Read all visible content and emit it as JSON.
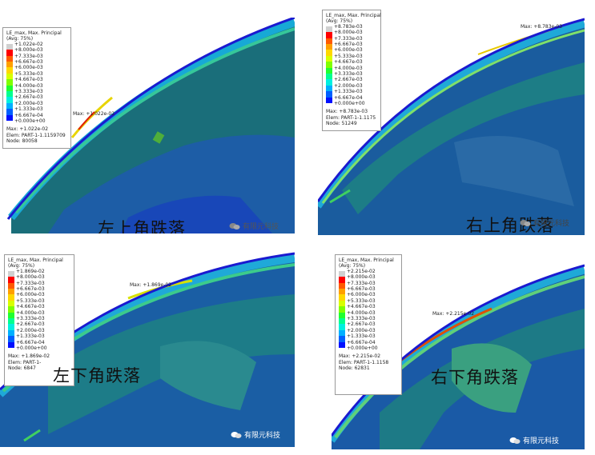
{
  "legend_colors": [
    "#d0d0d0",
    "#ff0000",
    "#ff5a00",
    "#ffa000",
    "#ffd800",
    "#d8ff00",
    "#80ff00",
    "#20ff30",
    "#00ff90",
    "#00f0e0",
    "#00b0ff",
    "#0060ff",
    "#0010ff"
  ],
  "panels": [
    {
      "title": "LE_max, Max. Principal",
      "avg": "(Avg: 75%)",
      "values": [
        "+1.022e-02",
        "+8.000e-03",
        "+7.333e-03",
        "+6.667e-03",
        "+6.000e-03",
        "+5.333e-03",
        "+4.667e-03",
        "+4.000e-03",
        "+3.333e-03",
        "+2.667e-03",
        "+2.000e-03",
        "+1.333e-03",
        "+6.667e-04",
        "+0.000e+00"
      ],
      "max_line": "Max: +1.022e-02",
      "elem_line": "Elem: PART-1-1.1159709",
      "node_line": "Node: 80058",
      "max_marker": "Max: +1.022e-02",
      "caption": "左上角跌落",
      "watermark": "有限元科技"
    },
    {
      "title": "LE_max, Max. Principal",
      "avg": "(Avg: 75%)",
      "values": [
        "+8.783e-03",
        "+8.000e-03",
        "+7.333e-03",
        "+6.667e-03",
        "+6.000e-03",
        "+5.333e-03",
        "+4.667e-03",
        "+4.000e-03",
        "+3.333e-03",
        "+2.667e-03",
        "+2.000e-03",
        "+1.333e-03",
        "+6.667e-04",
        "+0.000e+00"
      ],
      "max_line": "Max: +8.783e-03",
      "elem_line": "Elem: PART-1-1.1175",
      "node_line": "Node: 51249",
      "max_marker": "Max: +8.783e-03",
      "caption": "右上角跌落",
      "watermark": "有限元科技"
    },
    {
      "title": "LE_max, Max. Principal",
      "avg": "(Avg: 75%)",
      "values": [
        "+1.869e-02",
        "+8.000e-03",
        "+7.333e-03",
        "+6.667e-03",
        "+6.000e-03",
        "+5.333e-03",
        "+4.667e-03",
        "+4.000e-03",
        "+3.333e-03",
        "+2.667e-03",
        "+2.000e-03",
        "+1.333e-03",
        "+6.667e-04",
        "+0.000e+00"
      ],
      "max_line": "Max: +1.869e-02",
      "elem_line": "Elem: PART-1-",
      "node_line": "Node: 6847",
      "max_marker": "Max: +1.869e-02",
      "caption": "左下角跌落",
      "watermark": "有限元科技"
    },
    {
      "title": "LE_max, Max. Principal",
      "avg": "(Avg: 75%)",
      "values": [
        "+2.215e-02",
        "+8.000e-03",
        "+7.333e-03",
        "+6.667e-03",
        "+6.000e-03",
        "+5.333e-03",
        "+4.667e-03",
        "+4.000e-03",
        "+3.333e-03",
        "+2.667e-03",
        "+2.000e-03",
        "+1.333e-03",
        "+6.667e-04",
        "+0.000e+00"
      ],
      "max_line": "Max: +2.215e-02",
      "elem_line": "Elem: PART-1-1.1158",
      "node_line": "Node: 62831",
      "max_marker": "Max: +2.215e-02",
      "caption": "右下角跌落",
      "watermark": "有限元科技"
    }
  ]
}
